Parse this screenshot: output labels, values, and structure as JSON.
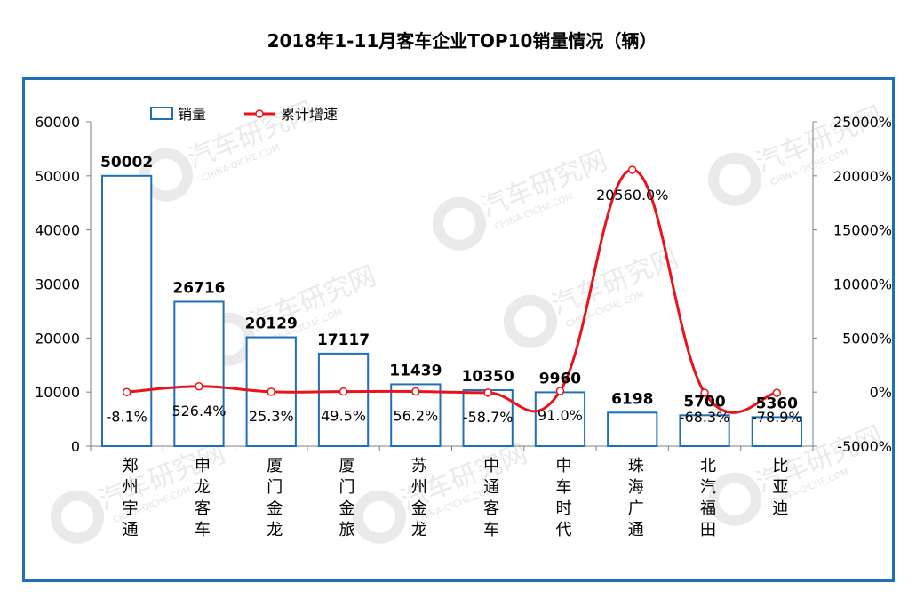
{
  "chart_data": {
    "type": "bar",
    "title": "2018年1-11月客车企业TOP10销量情况（辆）",
    "categories": [
      "郑州宇通",
      "申龙客车",
      "厦门金龙",
      "厦门金旅",
      "苏州金龙",
      "中通客车",
      "中车时代",
      "珠海广通",
      "北汽福田",
      "比亚迪"
    ],
    "series": [
      {
        "name": "销量",
        "type": "bar",
        "axis": "left",
        "values": [
          50002,
          26716,
          20129,
          17117,
          11439,
          10350,
          9960,
          6198,
          5700,
          5360
        ],
        "labels": [
          "50002",
          "26716",
          "20129",
          "17117",
          "11439",
          "10350",
          "9960",
          "6198",
          "5700",
          "5360"
        ]
      },
      {
        "name": "累计增速",
        "type": "line",
        "axis": "right",
        "values": [
          -8.1,
          526.4,
          25.3,
          49.5,
          56.2,
          -58.7,
          91.0,
          20560.0,
          -68.3,
          -78.9
        ],
        "labels": [
          "-8.1%",
          "526.4%",
          "25.3%",
          "49.5%",
          "56.2%",
          "-58.7%",
          "91.0%",
          "20560.0%",
          "-68.3%",
          "-78.9%"
        ]
      }
    ],
    "y_left": {
      "range": [
        0,
        60000
      ],
      "ticks": [
        "0",
        "10000",
        "20000",
        "30000",
        "40000",
        "50000",
        "60000"
      ]
    },
    "y_right": {
      "range": [
        -5000,
        25000
      ],
      "ticks": [
        "-5000%",
        "0%",
        "5000%",
        "10000%",
        "15000%",
        "20000%",
        "25000%"
      ]
    },
    "grid": false,
    "legend_position": "top-left",
    "colors": {
      "bar": "#1f6fb8",
      "line": "#e8141b",
      "frame": "#1f6fb8"
    }
  },
  "watermark": {
    "text": "汽车研究网",
    "subtext": "CHINA-QICHE.COM"
  }
}
